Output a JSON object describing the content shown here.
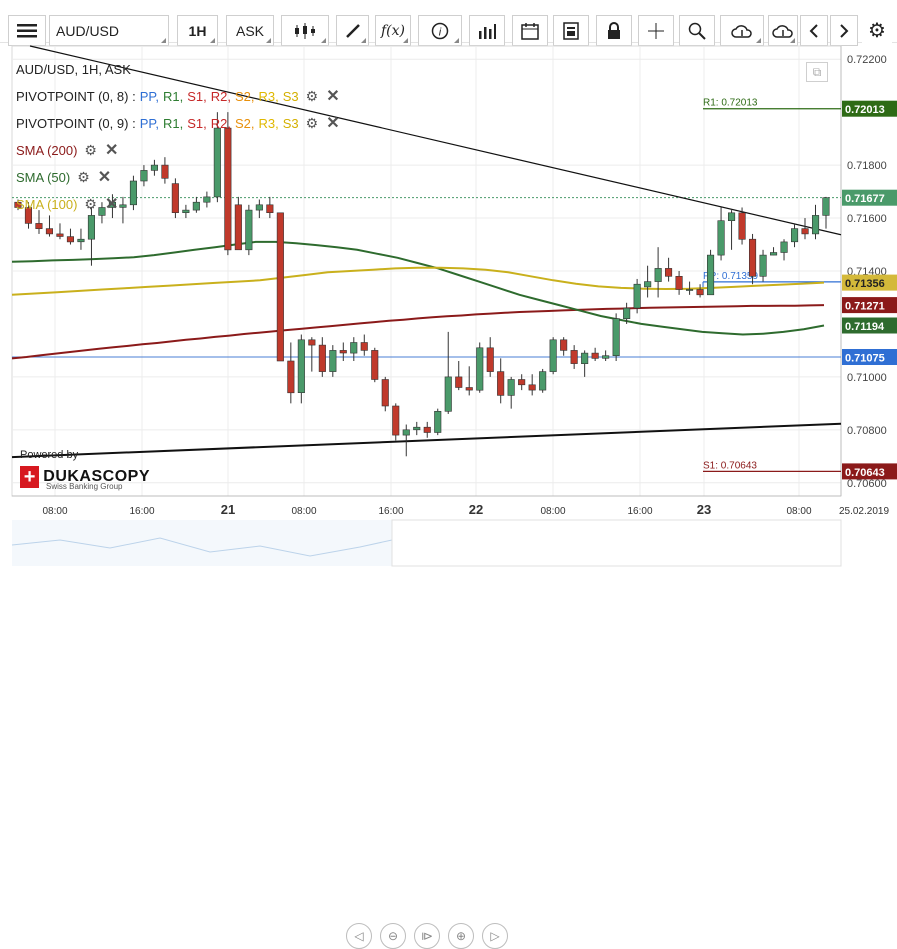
{
  "toolbar": {
    "menu_icon": "hamburger-menu-icon",
    "symbol": "AUD/USD",
    "timeframe": "1H",
    "price_side": "ASK",
    "buttons": [
      "candlestick-type-icon",
      "draw-pencil-icon",
      "function-fx-icon",
      "info-icon",
      "volume-bars-icon",
      "calendar-icon",
      "report-icon",
      "lock-icon",
      "crosshair-icon",
      "zoom-icon",
      "upload-cloud-icon",
      "download-cloud-icon",
      "scroll-left-icon",
      "scroll-right-icon",
      "settings-gear-icon"
    ],
    "fx_label": "f(x)"
  },
  "legend": {
    "title": "AUD/USD, 1H, ASK",
    "pivot1": {
      "label": "PIVOTPOINT (0, 8)",
      "sep": ":",
      "items": [
        "PP,",
        "R1,",
        "S1,",
        "R2,",
        "S2,",
        "R3,",
        "S3"
      ]
    },
    "pivot2": {
      "label": "PIVOTPOINT (0, 9)",
      "sep": ":",
      "items": [
        "PP,",
        "R1,",
        "S1,",
        "R2,",
        "S2,",
        "R3,",
        "S3"
      ]
    },
    "sma200": "SMA (200)",
    "sma50": "SMA (50)",
    "sma100": "SMA (100)"
  },
  "colors": {
    "PP": "#2f6fd4",
    "R1": "#2e7d32",
    "S1": "#c62828",
    "R2": "#c62828",
    "S2": "#e8900c",
    "R3": "#e0b800",
    "S3": "#d4b000",
    "up_candle": "#4a9a6a",
    "down_candle": "#c0392b",
    "sma200": "#8b1a1a",
    "sma50": "#2e6b2e",
    "sma100": "#c9b01c",
    "grid": "#ececec"
  },
  "chart_data": {
    "type": "candlestick",
    "title": "AUD/USD, 1H, ASK",
    "ylim": [
      0.7055,
      0.7225
    ],
    "y_ticks": [
      "0.72200",
      "0.71800",
      "0.71600",
      "0.71400",
      "0.71000",
      "0.70800",
      "0.70600"
    ],
    "x_ticks": [
      "08:00",
      "16:00",
      "21",
      "08:00",
      "16:00",
      "22",
      "08:00",
      "16:00",
      "23",
      "08:00",
      "25.02.2019"
    ],
    "price_labels": [
      {
        "value": 0.72013,
        "text": "0.72013",
        "color": "#2e6b16"
      },
      {
        "value": 0.71677,
        "text": "0.71677",
        "color": "#4a9a6a"
      },
      {
        "value": 0.71356,
        "text": "0.71356",
        "color": "#d4b93a"
      },
      {
        "value": 0.71271,
        "text": "0.71271",
        "color": "#8b1a1a"
      },
      {
        "value": 0.71194,
        "text": "0.71194",
        "color": "#2e6b2e"
      },
      {
        "value": 0.71075,
        "text": "0.71075",
        "color": "#2f6fd4"
      },
      {
        "value": 0.70643,
        "text": "0.70643",
        "color": "#8b1a1a"
      }
    ],
    "pivot_labels": {
      "r1": "R1: 0.72013",
      "pp": "PP: 0.71359",
      "s1": "S1: 0.70643"
    },
    "levels": {
      "r1": 0.72013,
      "pp": 0.71359,
      "s1": 0.70643,
      "prev_pp": 0.71075
    },
    "candles": [
      [
        0.7166,
        0.7167,
        0.7163,
        0.7164
      ],
      [
        0.7164,
        0.7166,
        0.7156,
        0.7158
      ],
      [
        0.7158,
        0.7163,
        0.7154,
        0.7156
      ],
      [
        0.7156,
        0.7161,
        0.7153,
        0.7154
      ],
      [
        0.7154,
        0.7158,
        0.7152,
        0.7153
      ],
      [
        0.7153,
        0.7156,
        0.715,
        0.7151
      ],
      [
        0.7151,
        0.7156,
        0.7148,
        0.7152
      ],
      [
        0.7152,
        0.7164,
        0.7142,
        0.7161
      ],
      [
        0.7161,
        0.7166,
        0.7158,
        0.7164
      ],
      [
        0.7164,
        0.7169,
        0.716,
        0.7166
      ],
      [
        0.7164,
        0.7168,
        0.7158,
        0.7165
      ],
      [
        0.7165,
        0.7176,
        0.7163,
        0.7174
      ],
      [
        0.7174,
        0.718,
        0.7172,
        0.7178
      ],
      [
        0.7178,
        0.7182,
        0.7176,
        0.718
      ],
      [
        0.718,
        0.7183,
        0.7173,
        0.7175
      ],
      [
        0.7173,
        0.7175,
        0.716,
        0.7162
      ],
      [
        0.7162,
        0.7165,
        0.716,
        0.7163
      ],
      [
        0.7163,
        0.7168,
        0.7162,
        0.7166
      ],
      [
        0.7166,
        0.717,
        0.7164,
        0.7168
      ],
      [
        0.7168,
        0.72,
        0.7166,
        0.7194
      ],
      [
        0.7194,
        0.72,
        0.7146,
        0.7148
      ],
      [
        0.7165,
        0.7168,
        0.7148,
        0.7148
      ],
      [
        0.7148,
        0.7165,
        0.7146,
        0.7163
      ],
      [
        0.7163,
        0.7167,
        0.716,
        0.7165
      ],
      [
        0.7165,
        0.7168,
        0.716,
        0.7162
      ],
      [
        0.7162,
        0.7162,
        0.7106,
        0.7106
      ],
      [
        0.7106,
        0.7113,
        0.709,
        0.7094
      ],
      [
        0.7094,
        0.7116,
        0.709,
        0.7114
      ],
      [
        0.7114,
        0.7115,
        0.7102,
        0.7112
      ],
      [
        0.7112,
        0.7115,
        0.71,
        0.7102
      ],
      [
        0.7102,
        0.7112,
        0.71,
        0.711
      ],
      [
        0.711,
        0.7113,
        0.7106,
        0.7109
      ],
      [
        0.7109,
        0.7115,
        0.7106,
        0.7113
      ],
      [
        0.7113,
        0.7116,
        0.7108,
        0.711
      ],
      [
        0.711,
        0.7111,
        0.7098,
        0.7099
      ],
      [
        0.7099,
        0.71,
        0.7087,
        0.7089
      ],
      [
        0.7089,
        0.709,
        0.7076,
        0.7078
      ],
      [
        0.7078,
        0.7082,
        0.707,
        0.708
      ],
      [
        0.708,
        0.7083,
        0.7078,
        0.7081
      ],
      [
        0.7081,
        0.7083,
        0.7077,
        0.7079
      ],
      [
        0.7079,
        0.7088,
        0.7078,
        0.7087
      ],
      [
        0.7087,
        0.7117,
        0.7086,
        0.71
      ],
      [
        0.71,
        0.7106,
        0.7095,
        0.7096
      ],
      [
        0.7096,
        0.7104,
        0.7093,
        0.7095
      ],
      [
        0.7095,
        0.7113,
        0.7094,
        0.7111
      ],
      [
        0.7111,
        0.7115,
        0.71,
        0.7102
      ],
      [
        0.7102,
        0.7107,
        0.709,
        0.7093
      ],
      [
        0.7093,
        0.71,
        0.7088,
        0.7099
      ],
      [
        0.7099,
        0.7101,
        0.7095,
        0.7097
      ],
      [
        0.7097,
        0.7101,
        0.7093,
        0.7095
      ],
      [
        0.7095,
        0.7103,
        0.7094,
        0.7102
      ],
      [
        0.7102,
        0.7115,
        0.7101,
        0.7114
      ],
      [
        0.7114,
        0.7115,
        0.7108,
        0.711
      ],
      [
        0.711,
        0.7112,
        0.7103,
        0.7105
      ],
      [
        0.7105,
        0.711,
        0.71,
        0.7109
      ],
      [
        0.7109,
        0.7111,
        0.7106,
        0.7107
      ],
      [
        0.7107,
        0.711,
        0.7106,
        0.7108
      ],
      [
        0.7108,
        0.7124,
        0.7106,
        0.7122
      ],
      [
        0.7122,
        0.7128,
        0.712,
        0.7126
      ],
      [
        0.7126,
        0.7137,
        0.7124,
        0.7135
      ],
      [
        0.7134,
        0.7142,
        0.713,
        0.7136
      ],
      [
        0.7136,
        0.7149,
        0.713,
        0.7141
      ],
      [
        0.7141,
        0.7145,
        0.7136,
        0.7138
      ],
      [
        0.7138,
        0.714,
        0.7131,
        0.7133
      ],
      [
        0.7133,
        0.7136,
        0.7131,
        0.7133
      ],
      [
        0.7133,
        0.7135,
        0.713,
        0.7131
      ],
      [
        0.7131,
        0.7148,
        0.7131,
        0.7146
      ],
      [
        0.7146,
        0.7164,
        0.7144,
        0.7159
      ],
      [
        0.7159,
        0.7163,
        0.7148,
        0.7162
      ],
      [
        0.7162,
        0.7164,
        0.715,
        0.7152
      ],
      [
        0.7152,
        0.7154,
        0.7135,
        0.7138
      ],
      [
        0.7138,
        0.7148,
        0.7136,
        0.7146
      ],
      [
        0.7146,
        0.7149,
        0.7146,
        0.7147
      ],
      [
        0.7147,
        0.7152,
        0.7144,
        0.7151
      ],
      [
        0.7151,
        0.7158,
        0.7149,
        0.7156
      ],
      [
        0.7156,
        0.716,
        0.7152,
        0.7154
      ],
      [
        0.7154,
        0.7165,
        0.7152,
        0.7161
      ],
      [
        0.7161,
        0.7168,
        0.7156,
        0.71677
      ]
    ],
    "series": [
      {
        "name": "SMA (200)",
        "values": [
          0.7107,
          0.71075,
          0.71082,
          0.71088,
          0.71094,
          0.711,
          0.71106,
          0.71112,
          0.71117,
          0.71123,
          0.71128,
          0.71134,
          0.7114,
          0.71145,
          0.71151,
          0.71156,
          0.71162,
          0.71167,
          0.71172,
          0.71177,
          0.71182,
          0.71187,
          0.71192,
          0.71197,
          0.71202,
          0.71207,
          0.71212,
          0.71216,
          0.71221,
          0.71225,
          0.71229,
          0.71232,
          0.71236,
          0.71239,
          0.71242,
          0.71245,
          0.71247,
          0.71249,
          0.71251,
          0.71253,
          0.71255,
          0.71257,
          0.71258,
          0.7126,
          0.71261,
          0.71262,
          0.71263,
          0.71264,
          0.71265,
          0.71266,
          0.71267,
          0.71268,
          0.71268,
          0.71269,
          0.71269,
          0.7127,
          0.71271
        ]
      },
      {
        "name": "SMA (50)",
        "values": [
          0.71435,
          0.71437,
          0.7144,
          0.71442,
          0.71445,
          0.71448,
          0.71452,
          0.7146,
          0.7147,
          0.7148,
          0.7149,
          0.715,
          0.7151,
          0.7151,
          0.71505,
          0.71498,
          0.7149,
          0.7148,
          0.71465,
          0.7145,
          0.7143,
          0.7141,
          0.71385,
          0.7136,
          0.71335,
          0.7131,
          0.7129,
          0.7127,
          0.7125,
          0.7123,
          0.71215,
          0.712,
          0.7119,
          0.7118,
          0.7117,
          0.71165,
          0.7116,
          0.71163,
          0.7117,
          0.7118,
          0.71194
        ]
      },
      {
        "name": "SMA (100)",
        "values": [
          0.7131,
          0.71315,
          0.7132,
          0.71325,
          0.7133,
          0.71335,
          0.7134,
          0.71345,
          0.7135,
          0.71355,
          0.7136,
          0.71365,
          0.71375,
          0.71385,
          0.71395,
          0.714,
          0.71405,
          0.7141,
          0.71412,
          0.71412,
          0.7141,
          0.71405,
          0.71395,
          0.7138,
          0.71365,
          0.71352,
          0.71342,
          0.71336,
          0.71333,
          0.71332,
          0.71333,
          0.71336,
          0.7134,
          0.71344,
          0.71348,
          0.71352,
          0.71356
        ]
      }
    ]
  },
  "powered": "Powered by",
  "brand": {
    "name": "DUKASCOPY",
    "sub": "Swiss Banking Group",
    "cross": "+"
  },
  "nav_icons": [
    "prev-icon",
    "zoom-out-icon",
    "fit-icon",
    "zoom-in-icon",
    "next-icon"
  ]
}
